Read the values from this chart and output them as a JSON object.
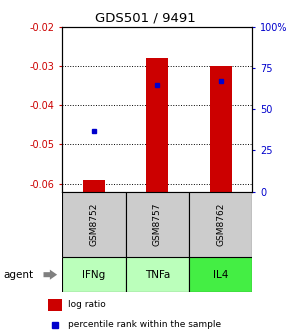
{
  "title": "GDS501 / 9491",
  "samples": [
    "GSM8752",
    "GSM8757",
    "GSM8762"
  ],
  "agents": [
    "IFNg",
    "TNFa",
    "IL4"
  ],
  "log_ratios": [
    -0.059,
    -0.028,
    -0.03
  ],
  "percentile_ranks": [
    37,
    65,
    67
  ],
  "ylim_left": [
    -0.062,
    -0.02
  ],
  "ylim_right": [
    0,
    100
  ],
  "left_ticks": [
    -0.02,
    -0.03,
    -0.04,
    -0.05,
    -0.06
  ],
  "right_ticks": [
    100,
    75,
    50,
    25,
    0
  ],
  "bar_color": "#cc0000",
  "dot_color": "#0000cc",
  "sample_bg": "#cccccc",
  "agent_colors": [
    "#bbffbb",
    "#bbffbb",
    "#44ee44"
  ],
  "title_color": "#000000",
  "left_tick_color": "#cc0000",
  "right_tick_color": "#0000cc",
  "bar_width": 0.35
}
